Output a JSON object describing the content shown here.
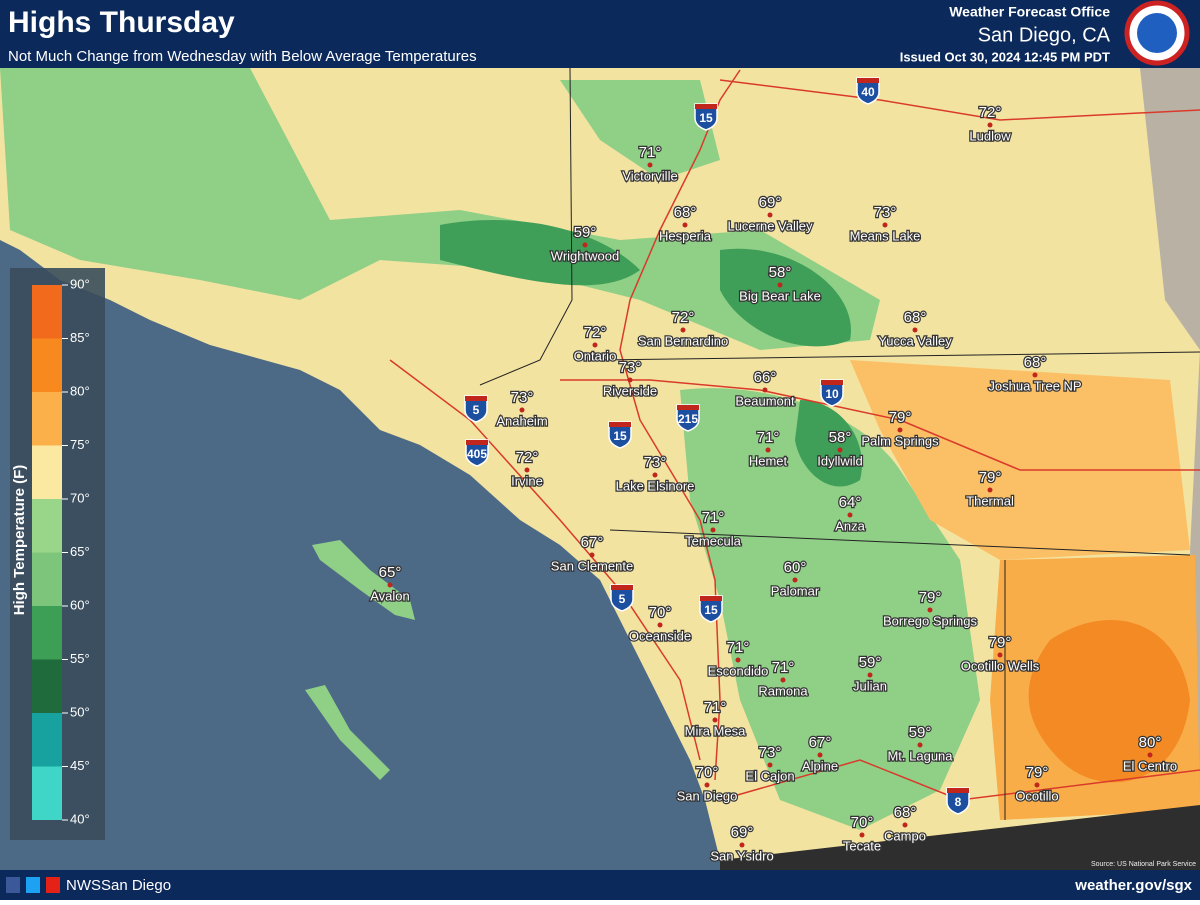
{
  "header": {
    "title": "Highs Thursday",
    "subtitle": "Not Much Change from Wednesday with Below Average Temperatures",
    "office": "Weather Forecast Office",
    "location": "San Diego, CA",
    "issued": "Issued Oct 30, 2024 12:45 PM PDT"
  },
  "legend": {
    "title": "High Temperature (F)",
    "labels": [
      "90°",
      "85°",
      "80°",
      "75°",
      "70°",
      "65°",
      "60°",
      "55°",
      "50°",
      "45°",
      "40°"
    ],
    "colors": [
      "#f26b1d",
      "#f7891f",
      "#fbb04a",
      "#fbe9a2",
      "#9ad68a",
      "#7dc57a",
      "#3d9e55",
      "#1f6b3b",
      "#17a2a0",
      "#3fd6c8"
    ]
  },
  "cities": [
    {
      "name": "Victorville",
      "temp": "71°"
    },
    {
      "name": "Hesperia",
      "temp": "68°"
    },
    {
      "name": "Lucerne Valley",
      "temp": "69°"
    },
    {
      "name": "Means Lake",
      "temp": "73°"
    },
    {
      "name": "Ludlow",
      "temp": "72°"
    },
    {
      "name": "Wrightwood",
      "temp": "59°"
    },
    {
      "name": "Big Bear Lake",
      "temp": "58°"
    },
    {
      "name": "Yucca Valley",
      "temp": "68°"
    },
    {
      "name": "Joshua Tree NP",
      "temp": "68°"
    },
    {
      "name": "Ontario",
      "temp": "72°"
    },
    {
      "name": "San Bernardino",
      "temp": "72°"
    },
    {
      "name": "Riverside",
      "temp": "73°"
    },
    {
      "name": "Beaumont",
      "temp": "66°"
    },
    {
      "name": "Palm Springs",
      "temp": "79°"
    },
    {
      "name": "Anaheim",
      "temp": "73°"
    },
    {
      "name": "Irvine",
      "temp": "72°"
    },
    {
      "name": "Lake Elsinore",
      "temp": "73°"
    },
    {
      "name": "Hemet",
      "temp": "71°"
    },
    {
      "name": "Idyllwild",
      "temp": "58°"
    },
    {
      "name": "Thermal",
      "temp": "79°"
    },
    {
      "name": "Anza",
      "temp": "64°"
    },
    {
      "name": "Temecula",
      "temp": "71°"
    },
    {
      "name": "San Clemente",
      "temp": "67°"
    },
    {
      "name": "Avalon",
      "temp": "65°"
    },
    {
      "name": "Palomar",
      "temp": "60°"
    },
    {
      "name": "Borrego Springs",
      "temp": "79°"
    },
    {
      "name": "Oceanside",
      "temp": "70°"
    },
    {
      "name": "Ocotillo Wells",
      "temp": "79°"
    },
    {
      "name": "Escondido",
      "temp": "71°"
    },
    {
      "name": "Ramona",
      "temp": "71°"
    },
    {
      "name": "Julian",
      "temp": "59°"
    },
    {
      "name": "Mira Mesa",
      "temp": "71°"
    },
    {
      "name": "Mt. Laguna",
      "temp": "59°"
    },
    {
      "name": "Alpine",
      "temp": "67°"
    },
    {
      "name": "El Cajon",
      "temp": "73°"
    },
    {
      "name": "El Centro",
      "temp": "80°"
    },
    {
      "name": "San Diego",
      "temp": "70°"
    },
    {
      "name": "Ocotillo",
      "temp": "79°"
    },
    {
      "name": "Campo",
      "temp": "68°"
    },
    {
      "name": "Tecate",
      "temp": "70°"
    },
    {
      "name": "San Ysidro",
      "temp": "69°"
    }
  ],
  "highways": [
    "40",
    "15",
    "10",
    "5",
    "215",
    "405",
    "15",
    "5",
    "15",
    "8"
  ],
  "footer": {
    "social": "NWSSan Diego",
    "url": "weather.gov/sgx",
    "source": "Source: US National Park Service"
  }
}
